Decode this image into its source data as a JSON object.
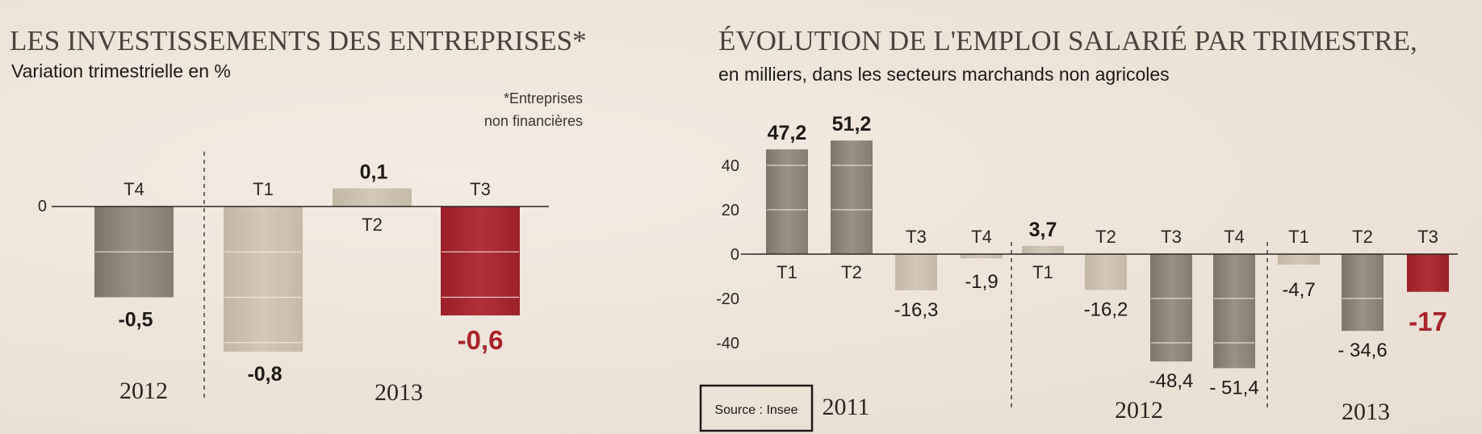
{
  "chart_data": [
    {
      "type": "bar",
      "title": "LES INVESTISSEMENTS DES ENTREPRISES*",
      "subtitle": "Variation trimestrielle en %",
      "note": "*Entreprises non financières",
      "note_lines": [
        "*Entreprises",
        "non financières"
      ],
      "y_tick_labels": [
        "0"
      ],
      "ylim": [
        -0.85,
        0.15
      ],
      "bars": [
        {
          "year": "2012",
          "quarter": "T4",
          "value": -0.5,
          "label": "-0,5",
          "highlight": false
        },
        {
          "year": "2013",
          "quarter": "T1",
          "value": -0.8,
          "label": "-0,8",
          "highlight": false
        },
        {
          "year": "2013",
          "quarter": "T2",
          "value": 0.1,
          "label": "0,1",
          "highlight": false
        },
        {
          "year": "2013",
          "quarter": "T3",
          "value": -0.6,
          "label": "-0,6",
          "highlight": true
        }
      ],
      "years": [
        "2012",
        "2013"
      ]
    },
    {
      "type": "bar",
      "title": "ÉVOLUTION DE L'EMPLOI SALARIÉ PAR TRIMESTRE,",
      "subtitle": "en milliers, dans les secteurs marchands non agricoles",
      "source": "Source : Insee",
      "y_ticks": [
        40,
        20,
        0,
        -20,
        -40
      ],
      "y_tick_labels": [
        "40",
        "20",
        "0",
        "-20",
        "-40"
      ],
      "ylim": [
        -60,
        55
      ],
      "bars": [
        {
          "year": "2011",
          "quarter": "T1",
          "value": 47.2,
          "label": "47,2",
          "highlight": false
        },
        {
          "year": "2011",
          "quarter": "T2",
          "value": 51.2,
          "label": "51,2",
          "highlight": false
        },
        {
          "year": "2011",
          "quarter": "T3",
          "value": -16.3,
          "label": "-16,3",
          "highlight": false
        },
        {
          "year": "2011",
          "quarter": "T4",
          "value": -1.9,
          "label": "-1,9",
          "highlight": false
        },
        {
          "year": "2012",
          "quarter": "T1",
          "value": 3.7,
          "label": "3,7",
          "highlight": false
        },
        {
          "year": "2012",
          "quarter": "T2",
          "value": -16.2,
          "label": "-16,2",
          "highlight": false
        },
        {
          "year": "2012",
          "quarter": "T3",
          "value": -48.4,
          "label": "-48,4",
          "highlight": false
        },
        {
          "year": "2012",
          "quarter": "T4",
          "value": -51.4,
          "label": "- 51,4",
          "highlight": false
        },
        {
          "year": "2013",
          "quarter": "T1",
          "value": -4.7,
          "label": "-4,7",
          "highlight": false
        },
        {
          "year": "2013",
          "quarter": "T2",
          "value": -34.6,
          "label": "- 34,6",
          "highlight": false
        },
        {
          "year": "2013",
          "quarter": "T3",
          "value": -17,
          "label": "-17",
          "highlight": true
        }
      ],
      "years": [
        "2011",
        "2012",
        "2013"
      ]
    }
  ],
  "colors": {
    "dark_bar": "#8d8478",
    "light_bar": "#cbbfae",
    "highlight_bar": "#a8232b",
    "highlight_text": "#a8232b",
    "axis": "#2b2723"
  }
}
